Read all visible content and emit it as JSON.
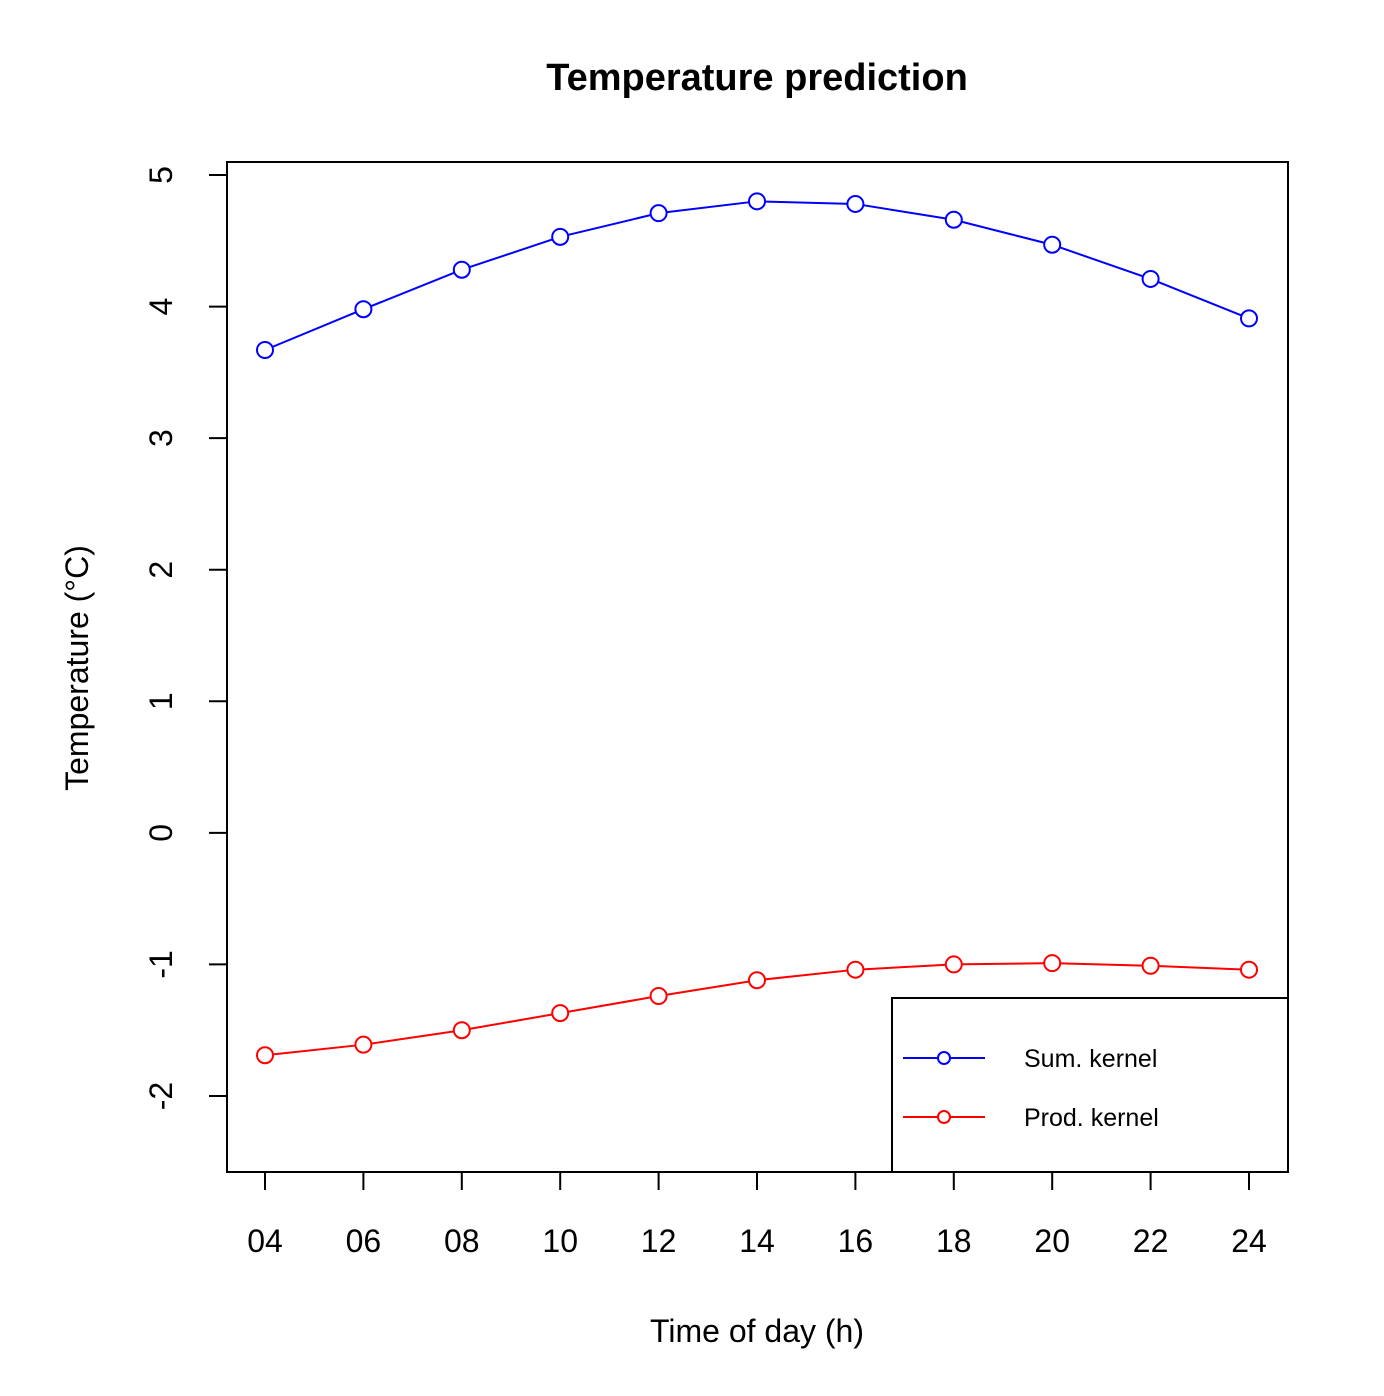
{
  "chart_data": {
    "type": "line",
    "title": "Temperature prediction",
    "xlabel": "Time of day (h)",
    "ylabel": "Temperature (°C)",
    "x": [
      "04",
      "06",
      "08",
      "10",
      "12",
      "14",
      "16",
      "18",
      "20",
      "22",
      "24"
    ],
    "y_ticks": [
      "-2",
      "-1",
      "0",
      "1",
      "2",
      "3",
      "4",
      "5"
    ],
    "ylim": [
      -2.6,
      5.1
    ],
    "grid": false,
    "legend_position": "bottom-right",
    "series": [
      {
        "name": "Sum. kernel",
        "color": "#0000ff",
        "marker": "open-circle",
        "values": [
          3.67,
          3.98,
          4.28,
          4.53,
          4.71,
          4.8,
          4.78,
          4.66,
          4.47,
          4.21,
          3.91
        ]
      },
      {
        "name": "Prod. kernel",
        "color": "#ff0000",
        "marker": "open-circle",
        "values": [
          -1.69,
          -1.61,
          -1.5,
          -1.37,
          -1.24,
          -1.12,
          -1.04,
          -1.0,
          -0.99,
          -1.01,
          -1.04
        ]
      }
    ]
  }
}
